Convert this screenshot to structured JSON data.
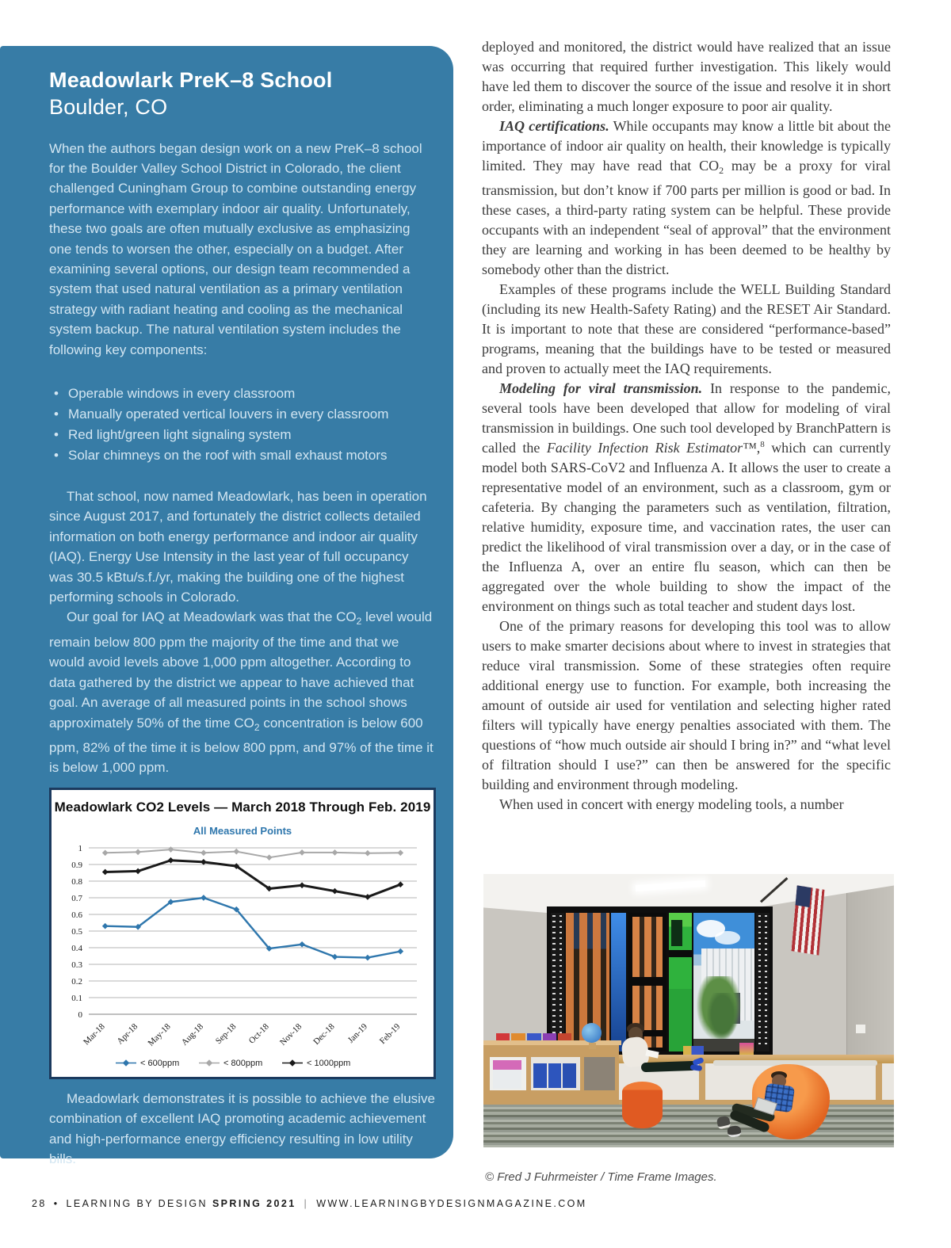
{
  "colors": {
    "sidebar_bg": "#377ca6",
    "chart_border": "#1b3a5e",
    "chart_subtitle": "#2f77ad"
  },
  "sidebar": {
    "title": "Meadowlark PreK–8 School",
    "subtitle": "Boulder, CO",
    "intro": "When the authors began design work on a new PreK–8 school for the Boulder Valley School District in Colorado, the client challenged Cuningham Group to combine outstanding energy performance with exemplary indoor air quality. Unfortunately, these two goals are often mutually exclusive as emphasizing one tends to worsen the other, especially on a budget. After examining several options, our design team recommended a system that used natural ventilation as a primary ventilation strategy with radiant heating and cooling as the mechanical system backup. The natural ventilation system includes the following key components:",
    "bullets": [
      "Operable windows in every classroom",
      "Manually operated vertical louvers in every classroom",
      "Red light/green light signaling system",
      "Solar chimneys on the roof with small exhaust motors"
    ],
    "para_operation": "That school, now named Meadowlark, has been in operation since August 2017, and fortunately the district collects detailed information on both energy performance and indoor air quality (IAQ). Energy Use Intensity in the last year of full occupancy was 30.5 kBtu/s.f./yr, making the building one of the highest performing schools in Colorado.",
    "para_goal": {
      "s1": "Our goal for IAQ at Meadowlark was that the CO",
      "sub1": "2",
      "s2": " level would remain below 800 ppm the majority of the time and that we would avoid levels above 1,000 ppm altogether. According to data gathered by the district we appear to have achieved that goal. An average of all measured points in the school shows approximately 50% of the time CO",
      "sub2": "2",
      "s3": " concentration is below 600 ppm, 82% of the time it is below 800 ppm, and 97% of the time it is below 1,000 ppm."
    },
    "outro": "Meadowlark demonstrates it is possible to achieve the elusive combination of excellent IAQ promoting academic achievement and high-performance energy efficiency resulting in low utility bills."
  },
  "article": {
    "p1": "deployed and monitored, the district would have realized that an issue was occurring that required further investigation. This likely would have led them to discover the source of the issue and resolve it in short order, eliminating a much longer exposure to poor air quality.",
    "p2_lead": "IAQ certifications.",
    "p2_s1": " While occupants may know a little bit about the importance of indoor air quality on health, their knowledge is typically limited. They may have read that CO",
    "p2_sub": "2",
    "p2_s2": " may be a proxy for viral transmission, but don’t know if 700 parts per million is good or bad. In these cases, a third-party rating system can be helpful. These provide occupants with an independent “seal of approval” that the environment they are learning and working in has been deemed to be healthy by somebody other than the district.",
    "p3": "Examples of these programs include the WELL Building Standard (including its new Health-Safety Rating) and the RESET Air Standard. It is important to note that these are considered “performance-based” programs, meaning that the buildings have to be tested or measured and proven to actually meet the IAQ requirements.",
    "p4_lead": "Modeling for viral transmission.",
    "p4_s1": " In response to the pandemic, several tools have been developed that allow for modeling of viral transmission in buildings. One such tool developed by BranchPattern is called the ",
    "p4_italic": "Facility Infection Risk Estimator™",
    "p4_s2": ",",
    "p4_sup": "8",
    "p4_s3": " which can currently model both SARS-CoV2 and Influenza A. It allows the user to create a representative model of an environment, such as a classroom, gym or cafeteria. By changing the parameters such as ventilation, filtration, relative humidity, exposure time, and vaccination rates, the user can predict the likelihood of viral transmission over a day, or in the case of the Influenza A, over an entire flu season, which can then be aggregated over the whole building to show the impact of the environment on things such as total teacher and student days lost.",
    "p5": "One of the primary reasons for developing this tool was to allow users to make smarter decisions about where to invest in strategies that reduce viral transmission. Some of these strategies often require additional energy use to function. For example, both increasing the amount of outside air used for ventilation and selecting higher rated filters will typically have energy penalties associated with them. The questions of “how much outside air should I bring in?” and “what level of filtration should I use?” can then be answered for the specific building and environment through modeling.",
    "p6": "When used in concert with energy modeling tools, a number"
  },
  "photo": {
    "caption": "© Fred J Fuhrmeister / Time Frame Images."
  },
  "footer": {
    "page_number": "28",
    "bullet": "•",
    "magazine": "LEARNING BY DESIGN",
    "issue": "SPRING 2021",
    "divider": "|",
    "website": "WWW.LEARNINGBYDESIGNMAGAZINE.COM"
  },
  "chart_data": {
    "type": "line",
    "title": "Meadowlark CO2 Levels — March 2018 Through Feb. 2019",
    "subtitle": "All Measured Points",
    "categories": [
      "Mar-18",
      "Apr-18",
      "May-18",
      "Aug-18",
      "Sep-18",
      "Oct-18",
      "Nov-18",
      "Dec-18",
      "Jan-19",
      "Feb-19"
    ],
    "series": [
      {
        "name": "< 600ppm",
        "color": "#2f77ad",
        "width": 2.4,
        "values": [
          0.53,
          0.525,
          0.675,
          0.7,
          0.63,
          0.395,
          0.42,
          0.345,
          0.34,
          0.378
        ]
      },
      {
        "name": "< 800ppm",
        "color": "#a8a8a8",
        "width": 2.0,
        "values": [
          0.97,
          0.975,
          0.99,
          0.97,
          0.978,
          0.942,
          0.972,
          0.972,
          0.968,
          0.97
        ]
      },
      {
        "name": "< 1000ppm",
        "color": "#1a1a1a",
        "width": 3.0,
        "values": [
          0.855,
          0.86,
          0.925,
          0.915,
          0.89,
          0.755,
          0.775,
          0.74,
          0.705,
          0.78
        ]
      }
    ],
    "ylim": [
      0,
      1
    ],
    "yticks": [
      0,
      0.1,
      0.2,
      0.3,
      0.4,
      0.5,
      0.6,
      0.7,
      0.8,
      0.9,
      1
    ],
    "xlabel": "",
    "ylabel": "",
    "grid": true,
    "legend_position": "bottom"
  }
}
